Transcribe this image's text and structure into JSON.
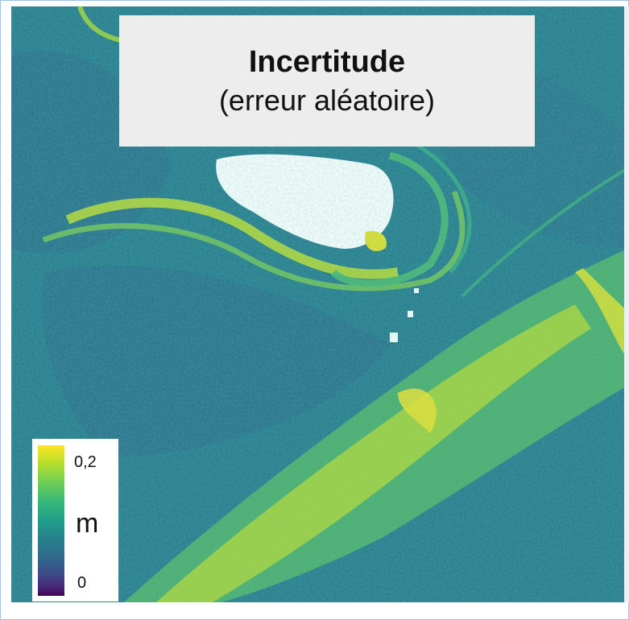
{
  "title": "Incertitude",
  "subtitle": "(erreur aléatoire)",
  "legend": {
    "max_label": "0,2",
    "min_label": "0",
    "unit": "m",
    "colormap": [
      "#440154",
      "#3e4989",
      "#26828e",
      "#35b779",
      "#b5de2b",
      "#fde725"
    ],
    "no_data_color": "#ffffff"
  }
}
